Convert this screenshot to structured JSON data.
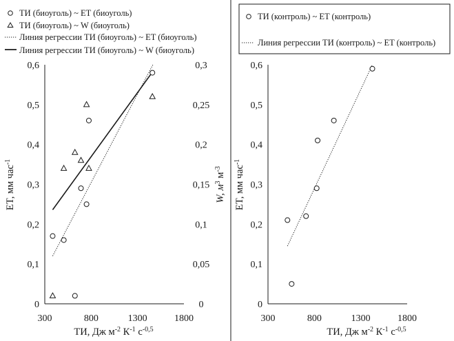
{
  "chart_data": [
    {
      "type": "scatter",
      "x_ticks": [
        "300",
        "800",
        "1300",
        "1800"
      ],
      "y_ticks": [
        "0",
        "0,1",
        "0,2",
        "0,3",
        "0,4",
        "0,5",
        "0,6"
      ],
      "y2_ticks": [
        "0",
        "0,05",
        "0,1",
        "0,15",
        "0,2",
        "0,25",
        "0,3"
      ],
      "xlim": [
        300,
        1800
      ],
      "ylim": [
        0,
        0.6
      ],
      "y2lim": [
        0,
        0.3
      ],
      "xlabel": {
        "main": "ТИ, Дж м",
        "s1": "-2",
        "m2": " К",
        "s2": "-1",
        "m3": " с",
        "s3": "-0,5"
      },
      "ylabel": {
        "main": "ET, мм час",
        "sup": "-1"
      },
      "y2label": {
        "main": "W, м",
        "s1": "3",
        "m2": " м",
        "s2": "-3"
      },
      "legend": [
        {
          "marker": "circle",
          "label": "ТИ (биоуголь) ~ ET (биоуголь)"
        },
        {
          "marker": "triangle",
          "label": "ТИ (биоуголь) ~ W (биоуголь)"
        },
        {
          "marker": "dotted",
          "label": "Линия регрессии ТИ (биоуголь) ~ ET (биоуголь)"
        },
        {
          "marker": "solid",
          "label": "Линия регрессии ТИ (биоуголь) ~ W (биоуголь)"
        }
      ],
      "series": [
        {
          "name": "ТИ (биоуголь) ~ ET (биоуголь)",
          "axis": "y",
          "marker": "circle",
          "x": [
            385,
            505,
            625,
            690,
            750,
            775,
            1460
          ],
          "y": [
            0.17,
            0.16,
            0.02,
            0.29,
            0.25,
            0.46,
            0.58
          ]
        },
        {
          "name": "ТИ (биоуголь) ~ W (биоуголь)",
          "axis": "y2",
          "marker": "triangle",
          "x": [
            385,
            505,
            625,
            690,
            750,
            775,
            1460
          ],
          "y": [
            0.01,
            0.17,
            0.19,
            0.18,
            0.25,
            0.17,
            0.26
          ]
        }
      ],
      "regression": [
        {
          "name": "Линия регрессии ТИ (биоуголь) ~ ET (биоуголь)",
          "axis": "y",
          "style": "dotted",
          "x": [
            385,
            1465
          ],
          "y": [
            0.12,
            0.6
          ]
        },
        {
          "name": "Линия регрессии ТИ (биоуголь) ~ W (биоуголь)",
          "axis": "y2",
          "style": "solid",
          "x": [
            385,
            1455
          ],
          "y": [
            0.118,
            0.29
          ]
        }
      ]
    },
    {
      "type": "scatter",
      "x_ticks": [
        "300",
        "800",
        "1300",
        "1800"
      ],
      "y_ticks": [
        "0",
        "0,1",
        "0,2",
        "0,3",
        "0,4",
        "0,5",
        "0,6"
      ],
      "xlim": [
        300,
        1800
      ],
      "ylim": [
        0,
        0.6
      ],
      "xlabel": {
        "main": "ТИ, Дж м",
        "s1": "-2",
        "m2": " К",
        "s2": "-1",
        "m3": " с",
        "s3": "-0,5"
      },
      "ylabel": {
        "main": "ET, мм час",
        "sup": "-1"
      },
      "legend": [
        {
          "marker": "circle",
          "label": "ТИ (контроль) ~ ET (контроль)"
        },
        {
          "marker": "dotted",
          "label": "Линия регрессии ТИ (контроль) ~ ET (контроль)"
        }
      ],
      "series": [
        {
          "name": "ТИ (контроль) ~ ET (контроль)",
          "axis": "y",
          "marker": "circle",
          "x": [
            510,
            555,
            710,
            825,
            835,
            1010,
            1425
          ],
          "y": [
            0.21,
            0.05,
            0.22,
            0.29,
            0.41,
            0.46,
            0.59
          ]
        }
      ],
      "regression": [
        {
          "name": "Линия регрессии ТИ (контроль) ~ ET (контроль)",
          "axis": "y",
          "style": "dotted",
          "x": [
            510,
            1425
          ],
          "y": [
            0.145,
            0.6
          ]
        }
      ]
    }
  ]
}
